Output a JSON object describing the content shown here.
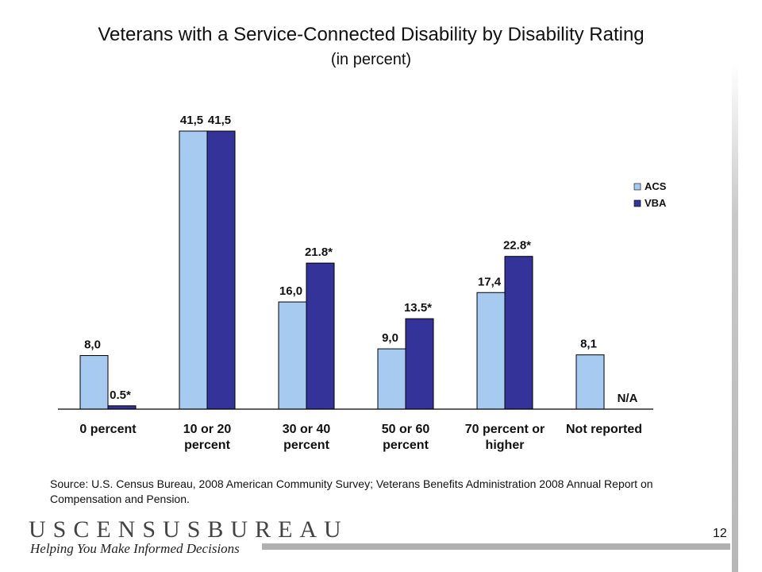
{
  "slide": {
    "title": "Veterans with a Service-Connected Disability by Disability Rating",
    "subtitle": "(in percent)",
    "source": "Source: U.S. Census Bureau, 2008 American Community Survey; Veterans Benefits Administration 2008 Annual Report on Compensation and Pension.",
    "logo_text": "USCENSUSBUREAU",
    "tagline": "Helping You Make Informed Decisions",
    "page_number": "12"
  },
  "chart_data": {
    "type": "bar",
    "title": "Veterans with a Service-Connected Disability by Disability Rating",
    "subtitle": "(in percent)",
    "categories": [
      [
        "0 percent"
      ],
      [
        "10 or 20",
        "percent"
      ],
      [
        "30 or 40",
        "percent"
      ],
      [
        "50 or 60",
        "percent"
      ],
      [
        "70 percent or",
        "higher"
      ],
      [
        "Not reported"
      ]
    ],
    "series": [
      {
        "name": "ACS",
        "color": "#a6caf0",
        "values": [
          8.0,
          41.5,
          16.0,
          9.0,
          17.4,
          8.1
        ],
        "labels": [
          "8,0",
          "41,5",
          "16,0",
          "9,0",
          "17,4",
          "8,1"
        ]
      },
      {
        "name": "VBA",
        "color": "#333399",
        "values": [
          0.5,
          41.5,
          21.8,
          13.5,
          22.8,
          null
        ],
        "labels": [
          "0.5*",
          "41,5",
          "21.8*",
          "13.5*",
          "22.8*",
          "N/A"
        ]
      }
    ],
    "ylim": [
      0,
      45
    ],
    "legend_position": "right",
    "grid": false
  }
}
